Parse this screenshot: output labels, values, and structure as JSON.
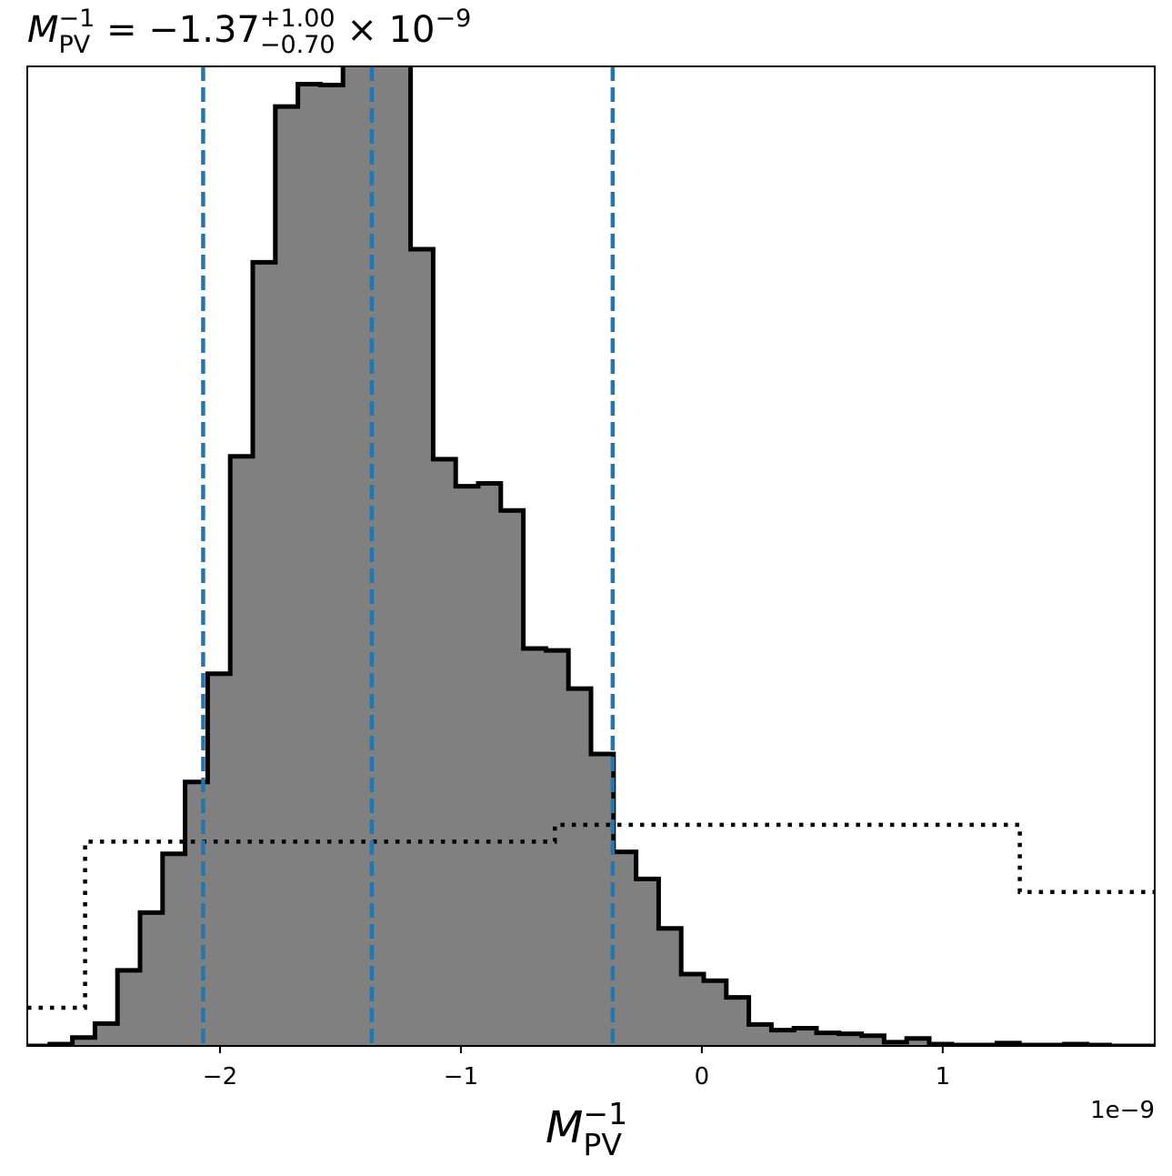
{
  "chart_data": {
    "type": "histogram",
    "title": {
      "symbol": "M",
      "subscript": "PV",
      "superscript": "−1",
      "value_text": " = −1.37",
      "upper_err": "+1.00",
      "lower_err": "−0.70",
      "multiplier": " × 10",
      "exponent": "−9"
    },
    "xlabel": {
      "symbol": "M",
      "subscript": "PV",
      "superscript": "−1"
    },
    "x_offset_label": "1e−9",
    "xlim": [
      -2.8,
      1.88
    ],
    "ylim": [
      0,
      1.05
    ],
    "grid": false,
    "x_ticks": [
      {
        "value": -2,
        "label": "−2"
      },
      {
        "value": -1,
        "label": "−1"
      },
      {
        "value": 0,
        "label": "0"
      },
      {
        "value": 1,
        "label": "1"
      }
    ],
    "posterior": {
      "bin_start": -2.8,
      "bin_width": 0.0936,
      "fill_color": "#808080",
      "edge_color": "#000000",
      "heights": [
        0.0,
        0.002,
        0.009,
        0.024,
        0.081,
        0.143,
        0.206,
        0.283,
        0.399,
        0.632,
        0.84,
        1.007,
        1.031,
        1.03,
        1.149,
        1.117,
        1.116,
        0.854,
        0.629,
        0.6,
        0.603,
        0.574,
        0.426,
        0.424,
        0.383,
        0.313,
        0.208,
        0.179,
        0.126,
        0.077,
        0.07,
        0.052,
        0.023,
        0.017,
        0.019,
        0.014,
        0.013,
        0.011,
        0.004,
        0.008,
        0.002,
        0.001,
        0.001,
        0.003,
        0.001,
        0.001,
        0.002,
        0.001,
        0.0,
        0.0
      ]
    },
    "prior": {
      "style": "dotted",
      "color": "#000000",
      "edges": [
        -2.8,
        -2.56,
        -0.61,
        1.32,
        1.88
      ],
      "heights": [
        0.041,
        0.219,
        0.237,
        0.165
      ]
    },
    "quantile_lines": {
      "color": "#1f77b4",
      "style": "dashed",
      "values": [
        -2.07,
        -1.37,
        -0.37
      ]
    }
  }
}
